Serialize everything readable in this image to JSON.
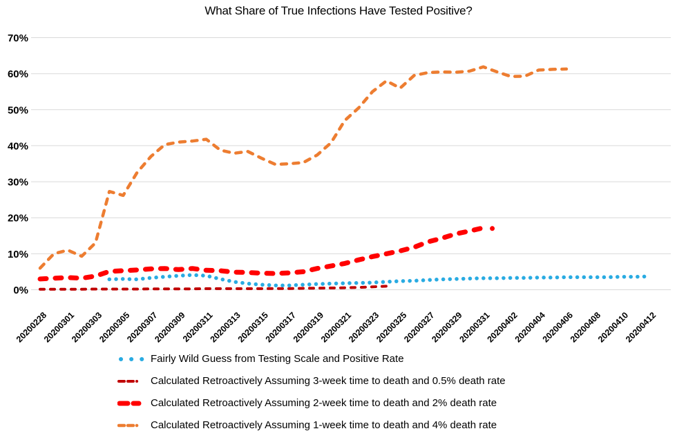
{
  "chart_data": {
    "type": "line",
    "title": "What Share of True Infections Have Tested Positive?",
    "ylabel": "",
    "xlabel": "",
    "ylim": [
      0,
      70
    ],
    "grid": "horizontal",
    "grid_color": "#D9D9D9",
    "legend_position": "bottom-left",
    "y_ticks": [
      {
        "value": 0,
        "label": "0%"
      },
      {
        "value": 10,
        "label": "10%"
      },
      {
        "value": 20,
        "label": "20%"
      },
      {
        "value": 30,
        "label": "30%"
      },
      {
        "value": 40,
        "label": "40%"
      },
      {
        "value": 50,
        "label": "50%"
      },
      {
        "value": 60,
        "label": "60%"
      },
      {
        "value": 70,
        "label": "70%"
      }
    ],
    "x_dates": [
      "20200228",
      "20200229",
      "20200301",
      "20200302",
      "20200303",
      "20200304",
      "20200305",
      "20200306",
      "20200307",
      "20200308",
      "20200309",
      "20200310",
      "20200311",
      "20200312",
      "20200313",
      "20200314",
      "20200315",
      "20200316",
      "20200317",
      "20200318",
      "20200319",
      "20200320",
      "20200321",
      "20200322",
      "20200323",
      "20200324",
      "20200325",
      "20200326",
      "20200327",
      "20200328",
      "20200329",
      "20200330",
      "20200331",
      "20200401",
      "20200402",
      "20200403",
      "20200404",
      "20200405",
      "20200406",
      "20200407",
      "20200408",
      "20200409",
      "20200410",
      "20200411",
      "20200412"
    ],
    "x_tick_labels": [
      "20200228",
      "20200301",
      "20200303",
      "20200305",
      "20200307",
      "20200309",
      "20200311",
      "20200313",
      "20200315",
      "20200317",
      "20200319",
      "20200321",
      "20200323",
      "20200325",
      "20200327",
      "20200329",
      "20200331",
      "20200402",
      "20200404",
      "20200406",
      "20200408",
      "20200410",
      "20200412"
    ],
    "series": [
      {
        "id": "wild-guess",
        "name": "Fairly Wild Guess from Testing Scale and Positive Rate",
        "color": "#29ABE2",
        "line_style": "dot",
        "start_date": "20200304",
        "start_index": 5,
        "values": [
          2.9,
          3.0,
          2.9,
          3.3,
          3.6,
          3.9,
          4.1,
          3.9,
          3.0,
          2.2,
          1.7,
          1.4,
          1.2,
          1.2,
          1.4,
          1.6,
          1.7,
          1.8,
          1.9,
          2.0,
          2.2,
          2.4,
          2.5,
          2.7,
          2.9,
          3.0,
          3.1,
          3.2,
          3.2,
          3.3,
          3.3,
          3.4,
          3.4,
          3.5,
          3.5,
          3.5,
          3.5,
          3.6,
          3.6,
          3.7
        ]
      },
      {
        "id": "retro-3week",
        "name": "Calculated Retroactively Assuming 3-week time to death and 0.5% death rate",
        "color": "#C00000",
        "line_style": "dash-small",
        "start_date": "20200228",
        "start_index": 0,
        "values": [
          0.15,
          0.15,
          0.15,
          0.15,
          0.2,
          0.2,
          0.2,
          0.2,
          0.25,
          0.25,
          0.25,
          0.25,
          0.3,
          0.3,
          0.3,
          0.3,
          0.3,
          0.35,
          0.35,
          0.4,
          0.45,
          0.5,
          0.55,
          0.65,
          0.8,
          1.0
        ]
      },
      {
        "id": "retro-2week",
        "name": "Calculated Retroactively Assuming 2-week time to death and 2% death rate",
        "color": "#FF0000",
        "line_style": "dash-thick",
        "start_date": "20200228",
        "start_index": 0,
        "values": [
          3.0,
          3.2,
          3.4,
          3.2,
          3.8,
          5.1,
          5.3,
          5.5,
          5.8,
          5.9,
          5.6,
          5.9,
          5.4,
          5.3,
          4.9,
          4.8,
          4.6,
          4.5,
          4.7,
          5.0,
          5.9,
          6.6,
          7.3,
          8.3,
          9.2,
          10.0,
          10.8,
          11.8,
          13.3,
          14.3,
          15.5,
          16.3,
          17.2
        ]
      },
      {
        "id": "retro-1week",
        "name": "Calculated Retroactively Assuming 1-week time to death and 4% death rate",
        "color": "#ED7D31",
        "line_style": "dash",
        "start_date": "20200228",
        "start_index": 0,
        "values": [
          6,
          10,
          11,
          9.3,
          13,
          27.3,
          26.2,
          32.5,
          37,
          40.3,
          41,
          41.3,
          41.8,
          38.8,
          37.9,
          38.4,
          36.5,
          34.8,
          35,
          35.3,
          37.4,
          40.8,
          47,
          50.5,
          55,
          58,
          56,
          59.5,
          60.3,
          60.5,
          60.4,
          60.7,
          61.9,
          60.5,
          59.2,
          59.3,
          61,
          61.2,
          61.3
        ]
      }
    ]
  }
}
